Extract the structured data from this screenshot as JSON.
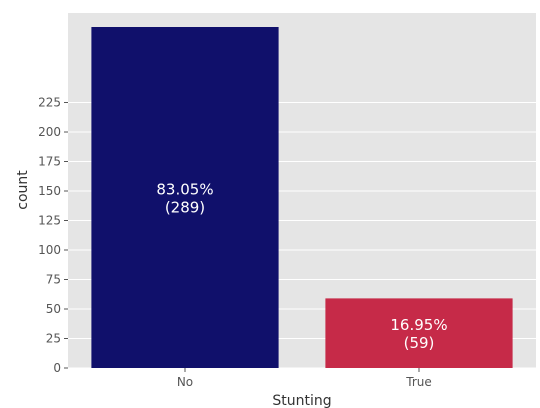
{
  "chart_data": {
    "type": "bar",
    "categories": [
      "No",
      "True"
    ],
    "values": [
      289,
      59
    ],
    "bar_labels": [
      {
        "percent": "83.05%",
        "count": "(289)"
      },
      {
        "percent": "16.95%",
        "count": "(59)"
      }
    ],
    "bar_colors": [
      "#10106b",
      "#c62a48"
    ],
    "xlabel": "Stunting",
    "ylabel": "count",
    "ylim": [
      0,
      289
    ],
    "yticks": [
      0,
      25,
      50,
      75,
      100,
      125,
      150,
      175,
      200,
      225
    ],
    "grid": true,
    "background": "#e5e5e5",
    "gridline_color": "#ffffff"
  }
}
